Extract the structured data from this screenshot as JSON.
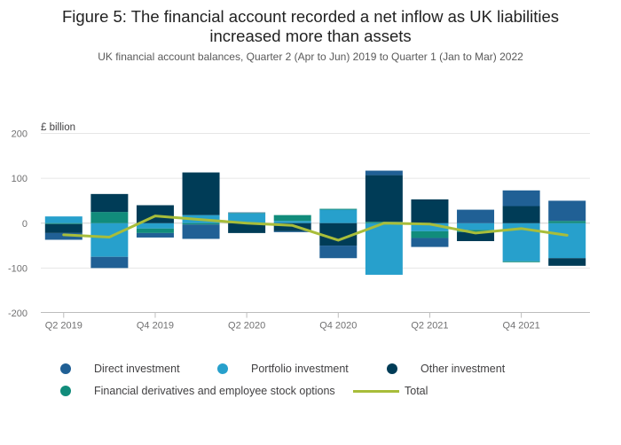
{
  "header": {
    "title_line1": "Figure 5: The financial account recorded a net inflow as UK liabilities",
    "title_line2": "increased more than assets",
    "subtitle": "UK financial account balances, Quarter 2 (Apr to Jun) 2019 to Quarter 1 (Jan to Mar) 2022"
  },
  "colors": {
    "direct": "#206095",
    "portfolio": "#27a0cc",
    "other": "#003c57",
    "derivatives": "#118c7b",
    "total": "#a8bd3a",
    "grid": "#e6e6e6",
    "axis": "#bdbdbd"
  },
  "legend": {
    "direct": "Direct investment",
    "portfolio": "Portfolio investment",
    "other": "Other investment",
    "derivatives": "Financial derivatives and employee stock options",
    "total": "Total"
  },
  "chart_data": {
    "type": "bar",
    "stacked": true,
    "title": "Figure 5: The financial account recorded a net inflow as UK liabilities increased more than assets",
    "subtitle": "UK financial account balances, Quarter 2 (Apr to Jun) 2019 to Quarter 1 (Jan to Mar) 2022",
    "ylabel": "£ billion",
    "ylim": [
      -200,
      200
    ],
    "yticks": [
      200,
      100,
      0,
      -100,
      -200
    ],
    "categories": [
      "Q2 2019",
      "Q3 2019",
      "Q4 2019",
      "Q1 2020",
      "Q2 2020",
      "Q3 2020",
      "Q4 2020",
      "Q1 2021",
      "Q2 2021",
      "Q3 2021",
      "Q4 2021",
      "Q1 2022"
    ],
    "xtick_labels": [
      "Q2 2019",
      "",
      "Q4 2019",
      "",
      "Q2 2020",
      "",
      "Q4 2020",
      "",
      "Q2 2021",
      "",
      "Q4 2021",
      ""
    ],
    "series": [
      {
        "key": "portfolio",
        "name": "Portfolio investment",
        "values": [
          15,
          -75,
          -12,
          18,
          22,
          5,
          30,
          -115,
          -18,
          -15,
          -85,
          -78
        ]
      },
      {
        "key": "derivatives",
        "name": "Financial derivatives and employee stock options",
        "values": [
          -2,
          25,
          -10,
          -3,
          1,
          13,
          2,
          3,
          -15,
          -5,
          -2,
          5
        ]
      },
      {
        "key": "other",
        "name": "Other investment",
        "values": [
          -20,
          40,
          40,
          95,
          -22,
          -18,
          -50,
          104,
          53,
          -20,
          38,
          -17
        ]
      },
      {
        "key": "direct",
        "name": "Direct investment",
        "values": [
          -15,
          -25,
          -10,
          -32,
          1,
          -2,
          -28,
          10,
          -20,
          30,
          35,
          45
        ]
      },
      {
        "key": "total",
        "name": "Total",
        "type": "line",
        "values": [
          -26,
          -31,
          16,
          8,
          0,
          -5,
          -38,
          0,
          -2,
          -22,
          -12,
          -27
        ]
      }
    ]
  }
}
